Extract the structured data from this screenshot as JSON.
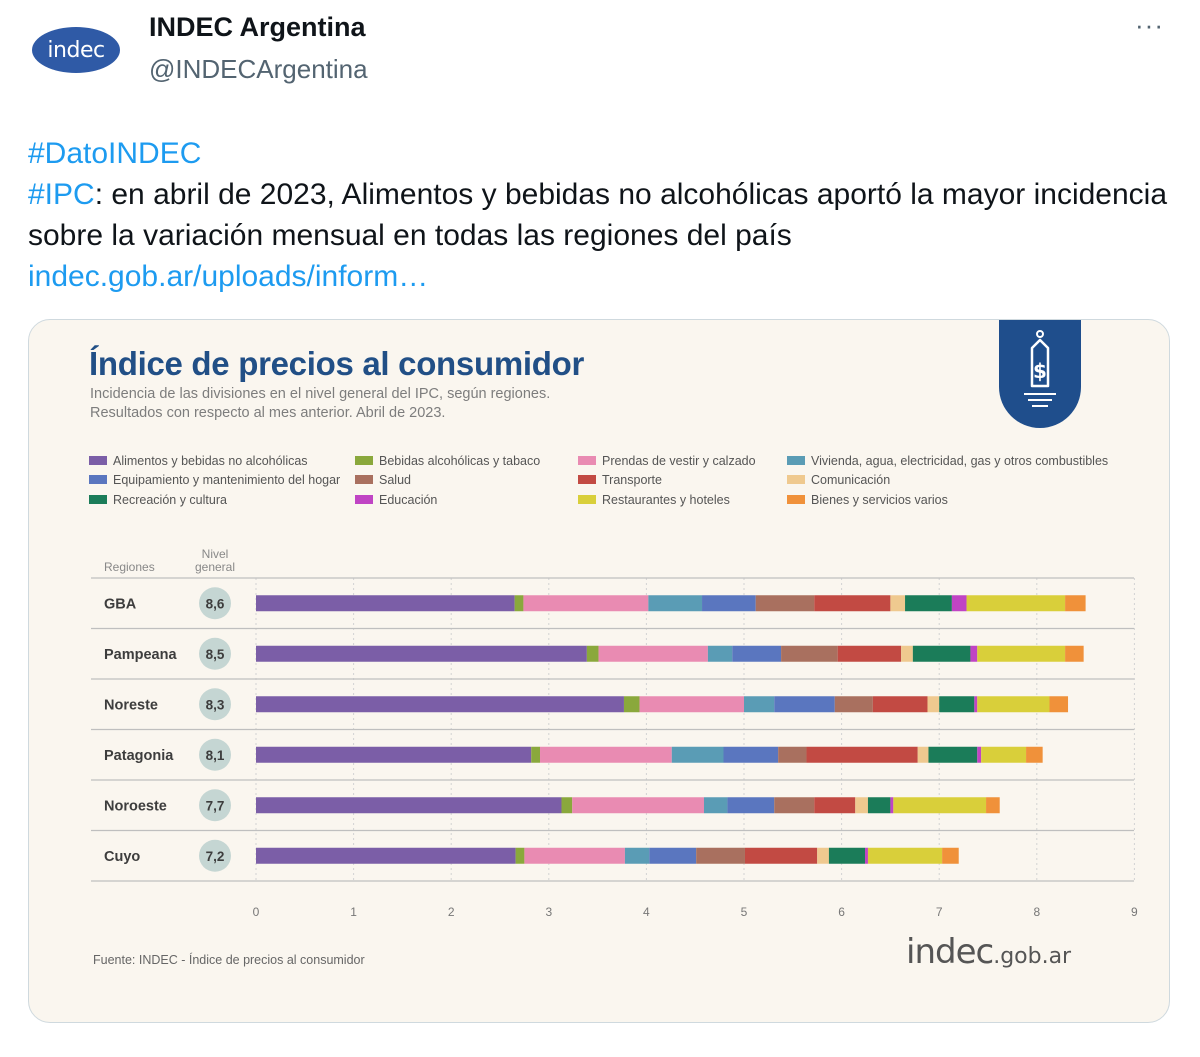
{
  "tweet": {
    "author_name": "INDEC Argentina",
    "handle": "@INDECArgentina",
    "avatar_text": "indec",
    "more": "···",
    "hashtag1": "#DatoINDEC",
    "hashtag2": "#IPC",
    "text": ": en abril de 2023, Alimentos y bebidas no alcohólicas aportó la mayor incidencia sobre la variación mensual en todas las regiones del país ",
    "link": "indec.gob.ar/uploads/inform…"
  },
  "card": {
    "source": "Fuente: INDEC - Índice de precios al consumidor",
    "brand_main": "indec",
    "brand_domain": ".gob.ar"
  },
  "chart_data": {
    "type": "bar",
    "orientation": "horizontal",
    "stacked": true,
    "title": "Índice de precios al consumidor",
    "subtitle_lines": [
      "Incidencia de las divisiones en el nivel general del IPC, según regiones.",
      "Resultados con respecto al mes anterior. Abril de 2023."
    ],
    "row_header": "Regiones",
    "level_header_lines": [
      "Nivel",
      "general"
    ],
    "categories": [
      "GBA",
      "Pampeana",
      "Noreste",
      "Patagonia",
      "Noroeste",
      "Cuyo"
    ],
    "nivel_general": [
      "8,6",
      "8,5",
      "8,3",
      "8,1",
      "7,7",
      "7,2"
    ],
    "xlim": [
      0,
      9
    ],
    "xticks": [
      0,
      1,
      2,
      3,
      4,
      5,
      6,
      7,
      8,
      9
    ],
    "grid": true,
    "legend_position": "top",
    "series": [
      {
        "name": "Alimentos y bebidas no alcohólicas",
        "color": "#7b5ea7",
        "values": [
          2.65,
          3.39,
          3.77,
          2.82,
          3.13,
          2.66
        ]
      },
      {
        "name": "Bebidas alcohólicas y tabaco",
        "color": "#8aa83c",
        "values": [
          0.09,
          0.12,
          0.16,
          0.09,
          0.11,
          0.09
        ]
      },
      {
        "name": "Prendas de vestir y calzado",
        "color": "#e98bb2",
        "values": [
          1.28,
          1.12,
          1.07,
          1.35,
          1.35,
          1.03
        ]
      },
      {
        "name": "Vivienda, agua, electricidad, gas y otros combustibles",
        "color": "#5a9cb5",
        "values": [
          0.55,
          0.25,
          0.31,
          0.53,
          0.24,
          0.25
        ]
      },
      {
        "name": "Equipamiento y mantenimiento del hogar",
        "color": "#5a76bf",
        "values": [
          0.55,
          0.5,
          0.62,
          0.56,
          0.48,
          0.48
        ]
      },
      {
        "name": "Salud",
        "color": "#a9705f",
        "values": [
          0.6,
          0.58,
          0.39,
          0.29,
          0.41,
          0.5
        ]
      },
      {
        "name": "Transporte",
        "color": "#c24a43",
        "values": [
          0.78,
          0.65,
          0.56,
          1.14,
          0.42,
          0.74
        ]
      },
      {
        "name": "Comunicación",
        "color": "#efc98f",
        "values": [
          0.15,
          0.12,
          0.12,
          0.11,
          0.13,
          0.12
        ]
      },
      {
        "name": "Recreación y cultura",
        "color": "#1b7c59",
        "values": [
          0.48,
          0.59,
          0.36,
          0.5,
          0.23,
          0.37
        ]
      },
      {
        "name": "Educación",
        "color": "#c044c4",
        "values": [
          0.15,
          0.07,
          0.03,
          0.04,
          0.03,
          0.03
        ]
      },
      {
        "name": "Restaurantes y hoteles",
        "color": "#d9cf3a",
        "values": [
          1.01,
          0.9,
          0.74,
          0.46,
          0.95,
          0.76
        ]
      },
      {
        "name": "Bienes y servicios varios",
        "color": "#f0913a",
        "values": [
          0.21,
          0.19,
          0.19,
          0.17,
          0.14,
          0.17
        ]
      }
    ]
  }
}
